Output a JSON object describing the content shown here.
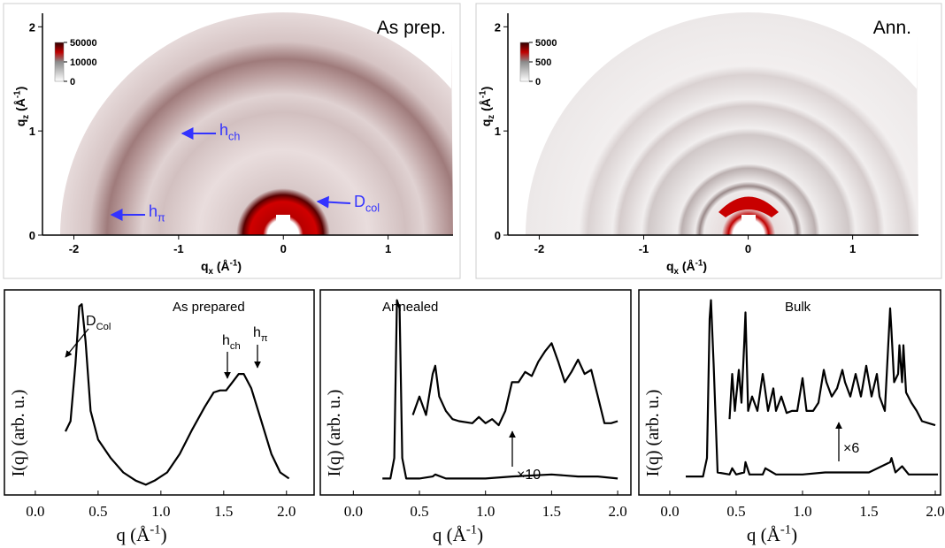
{
  "chart_data": [
    {
      "type": "image",
      "label": "As prep.",
      "xlabel": {
        "text": "q",
        "sub": "x",
        "mid": " (Å",
        "sup": "-1",
        "end": ")"
      },
      "ylabel": {
        "text": "q",
        "sub": "z",
        "mid": " (Å",
        "sup": "-1",
        "end": ")"
      },
      "xlim": [
        -2.3,
        1.62
      ],
      "ylim": [
        0,
        2.13
      ],
      "xticks": [
        -2,
        -1,
        0,
        1
      ],
      "yticks": [
        0,
        1,
        2
      ],
      "colorbar_ticks": [
        0,
        10000,
        50000
      ],
      "annotations": [
        {
          "text": "h",
          "sub": "ch"
        },
        {
          "text": "h",
          "sub": "π"
        },
        {
          "text": "D",
          "sub": "col"
        }
      ]
    },
    {
      "type": "image",
      "label": "Ann.",
      "xlabel": {
        "text": "q",
        "sub": "x",
        "mid": " (Å",
        "sup": "-1",
        "end": ")"
      },
      "ylabel": {
        "text": "q",
        "sub": "z",
        "mid": " (Å",
        "sup": "-1",
        "end": ")"
      },
      "xlim": [
        -2.3,
        1.63
      ],
      "ylim": [
        0,
        2.13
      ],
      "xticks": [
        -2,
        -1,
        0,
        1
      ],
      "yticks": [
        0,
        1,
        2
      ],
      "colorbar_ticks": [
        0,
        500,
        5000
      ],
      "annotations": []
    },
    {
      "type": "line",
      "title": "As prepared",
      "ylabel": "I(q)  (arb. u.)",
      "xlabel": {
        "text": "q  (Å",
        "sup": "-1",
        "end": ")"
      },
      "xlim": [
        -0.246,
        2.22
      ],
      "ylim": [
        0,
        1
      ],
      "xticks": [
        {
          "value": 0,
          "label": "0.0"
        },
        0.5,
        {
          "value": 1,
          "label": "1.0"
        },
        1.5,
        {
          "value": 2,
          "label": "2.0"
        }
      ],
      "series": [
        {
          "color": "#000000",
          "x": [
            0.24,
            0.28,
            0.32,
            0.35,
            0.37,
            0.4,
            0.44,
            0.5,
            0.6,
            0.7,
            0.8,
            0.88,
            0.95,
            1.05,
            1.15,
            1.25,
            1.35,
            1.42,
            1.47,
            1.52,
            1.57,
            1.62,
            1.66,
            1.72,
            1.8,
            1.88,
            1.95,
            2.02
          ],
          "values": [
            0.31,
            0.36,
            0.64,
            0.92,
            0.93,
            0.75,
            0.41,
            0.27,
            0.18,
            0.11,
            0.07,
            0.05,
            0.07,
            0.11,
            0.2,
            0.32,
            0.43,
            0.5,
            0.51,
            0.51,
            0.55,
            0.59,
            0.59,
            0.52,
            0.36,
            0.2,
            0.11,
            0.08
          ]
        }
      ],
      "annotations": [
        {
          "text": "D",
          "sub": "Col"
        },
        {
          "text": "h",
          "sub": "ch"
        },
        {
          "text": "h",
          "sub": "π"
        }
      ]
    },
    {
      "type": "line",
      "title": "Annealed",
      "ylabel": "I(q)  (arb. u.)",
      "xlabel": {
        "text": "q  (Å",
        "sup": "-1",
        "end": ")"
      },
      "xlim": [
        -0.25,
        2.1
      ],
      "ylim": [
        0,
        1
      ],
      "xticks": [
        {
          "value": 0,
          "label": "0.0"
        },
        0.5,
        {
          "value": 1,
          "label": "1.0"
        },
        1.5,
        {
          "value": 2,
          "label": "2.0"
        }
      ],
      "series": [
        {
          "color": "#000000",
          "x": [
            0.22,
            0.28,
            0.31,
            0.33,
            0.35,
            0.37,
            0.4,
            0.5,
            0.6,
            0.62,
            0.7,
            1.0,
            1.2,
            1.5,
            1.7,
            1.85,
            2.0
          ],
          "values": [
            0.08,
            0.08,
            0.18,
            0.95,
            0.91,
            0.18,
            0.08,
            0.08,
            0.09,
            0.1,
            0.08,
            0.08,
            0.09,
            0.1,
            0.09,
            0.09,
            0.08
          ]
        },
        {
          "color": "#000000",
          "x": [
            0.45,
            0.5,
            0.55,
            0.6,
            0.62,
            0.65,
            0.7,
            0.75,
            0.8,
            0.9,
            0.95,
            1.0,
            1.05,
            1.1,
            1.15,
            1.2,
            1.25,
            1.3,
            1.35,
            1.4,
            1.45,
            1.5,
            1.55,
            1.6,
            1.65,
            1.7,
            1.75,
            1.8,
            1.85,
            1.9,
            1.95,
            2.0
          ],
          "values": [
            0.39,
            0.48,
            0.39,
            0.59,
            0.63,
            0.48,
            0.41,
            0.37,
            0.36,
            0.35,
            0.38,
            0.35,
            0.37,
            0.34,
            0.41,
            0.55,
            0.55,
            0.6,
            0.58,
            0.65,
            0.7,
            0.74,
            0.65,
            0.55,
            0.6,
            0.66,
            0.59,
            0.61,
            0.48,
            0.35,
            0.35,
            0.36
          ]
        }
      ],
      "annotations": [
        {
          "text": "×10"
        }
      ]
    },
    {
      "type": "line",
      "title": "Bulk",
      "ylabel": "I(q)  (arb. u.)",
      "xlabel": {
        "text": "q  (Å",
        "sup": "-1",
        "end": ")"
      },
      "xlim": [
        -0.233,
        2.04
      ],
      "ylim": [
        0,
        1
      ],
      "xticks": [
        {
          "value": 0,
          "label": "0.0"
        },
        0.5,
        {
          "value": 1,
          "label": "1.0"
        },
        1.5,
        {
          "value": 2,
          "label": "2.0"
        }
      ],
      "series": [
        {
          "color": "#000000",
          "x": [
            0.12,
            0.25,
            0.28,
            0.3,
            0.31,
            0.33,
            0.36,
            0.45,
            0.47,
            0.5,
            0.56,
            0.57,
            0.6,
            0.7,
            0.72,
            0.8,
            1.0,
            1.17,
            1.3,
            1.5,
            1.66,
            1.67,
            1.7,
            1.75,
            1.8,
            1.9,
            2.02
          ],
          "values": [
            0.09,
            0.09,
            0.18,
            0.86,
            0.95,
            0.64,
            0.11,
            0.1,
            0.13,
            0.1,
            0.11,
            0.16,
            0.1,
            0.1,
            0.13,
            0.1,
            0.1,
            0.11,
            0.11,
            0.11,
            0.16,
            0.18,
            0.11,
            0.14,
            0.1,
            0.1,
            0.1
          ]
        },
        {
          "color": "#000000",
          "x": [
            0.45,
            0.47,
            0.49,
            0.52,
            0.54,
            0.56,
            0.57,
            0.59,
            0.62,
            0.66,
            0.7,
            0.71,
            0.74,
            0.78,
            0.8,
            0.84,
            0.88,
            0.92,
            0.96,
            1.0,
            1.03,
            1.08,
            1.12,
            1.16,
            1.18,
            1.22,
            1.26,
            1.3,
            1.32,
            1.36,
            1.4,
            1.44,
            1.48,
            1.52,
            1.56,
            1.58,
            1.62,
            1.66,
            1.67,
            1.69,
            1.72,
            1.73,
            1.75,
            1.76,
            1.78,
            1.82,
            1.86,
            1.9,
            1.95,
            2.0
          ],
          "values": [
            0.37,
            0.59,
            0.41,
            0.61,
            0.45,
            0.73,
            0.89,
            0.41,
            0.48,
            0.41,
            0.59,
            0.55,
            0.41,
            0.52,
            0.41,
            0.48,
            0.4,
            0.41,
            0.41,
            0.57,
            0.41,
            0.41,
            0.45,
            0.61,
            0.55,
            0.48,
            0.52,
            0.61,
            0.55,
            0.48,
            0.59,
            0.48,
            0.63,
            0.48,
            0.59,
            0.48,
            0.41,
            0.91,
            0.8,
            0.55,
            0.59,
            0.73,
            0.55,
            0.73,
            0.5,
            0.45,
            0.41,
            0.36,
            0.35,
            0.34
          ]
        }
      ],
      "annotations": [
        {
          "text": "×6"
        }
      ]
    }
  ]
}
